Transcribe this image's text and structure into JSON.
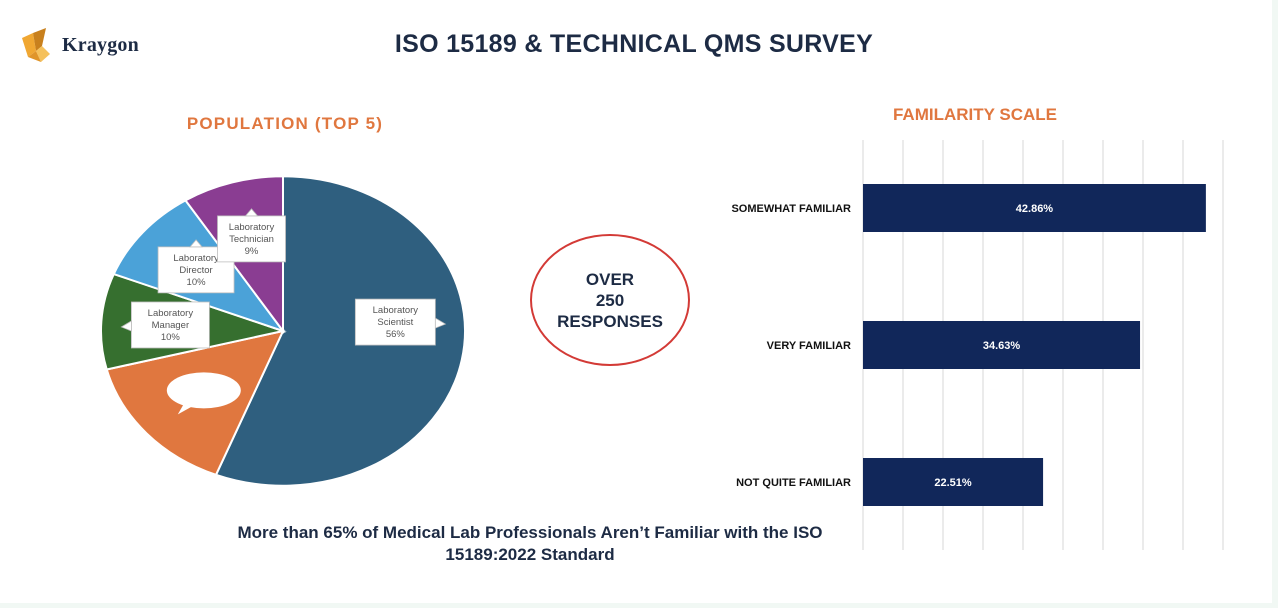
{
  "brand": {
    "name": "Kraygon",
    "colors": {
      "gold": "#f0a732",
      "goldDark": "#c8801d",
      "navy": "#1d2b44"
    }
  },
  "title": "ISO 15189 & TECHNICAL QMS SURVEY",
  "badge": {
    "line1": "OVER",
    "line2": "250",
    "line3": "RESPONSES"
  },
  "caption": {
    "line1": "More than 65% of Medical Lab Professionals Aren’t Familiar with the ISO",
    "line2": "15189:2022 Standard"
  },
  "chart_data": [
    {
      "type": "pie",
      "title": "POPULATION (TOP 5)",
      "slices": [
        {
          "name": "Laboratory Scientist",
          "label_lines": [
            "Laboratory",
            "Scientist"
          ],
          "value": 56,
          "value_label": "56%",
          "color": "#2f5f7f"
        },
        {
          "name": "",
          "label_lines": [],
          "value": 15,
          "value_label": "",
          "color": "#e0773f"
        },
        {
          "name": "Laboratory Manager",
          "label_lines": [
            "Laboratory",
            "Manager"
          ],
          "value": 10,
          "value_label": "10%",
          "color": "#366f2f"
        },
        {
          "name": "Laboratory Director",
          "label_lines": [
            "Laboratory",
            "Director"
          ],
          "value": 10,
          "value_label": "10%",
          "color": "#4ba2d8"
        },
        {
          "name": "Laboratory Technician",
          "label_lines": [
            "Laboratory",
            "Technician"
          ],
          "value": 9,
          "value_label": "9%",
          "color": "#8a3d92"
        }
      ]
    },
    {
      "type": "bar",
      "orientation": "horizontal",
      "title": "FAMILARITY SCALE",
      "categories": [
        "SOMEWHAT FAMILIAR",
        "VERY FAMILIAR",
        "NOT QUITE FAMILIAR"
      ],
      "values": [
        42.86,
        34.63,
        22.51
      ],
      "value_labels": [
        "42.86%",
        "34.63%",
        "22.51%"
      ],
      "xlim": [
        0,
        45
      ],
      "grid": true,
      "bar_color": "#11275a"
    }
  ]
}
